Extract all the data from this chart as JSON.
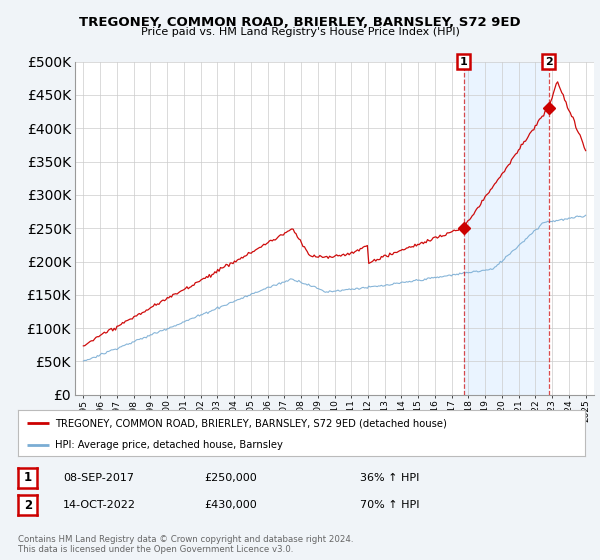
{
  "title": "TREGONEY, COMMON ROAD, BRIERLEY, BARNSLEY, S72 9ED",
  "subtitle": "Price paid vs. HM Land Registry's House Price Index (HPI)",
  "legend_line1": "TREGONEY, COMMON ROAD, BRIERLEY, BARNSLEY, S72 9ED (detached house)",
  "legend_line2": "HPI: Average price, detached house, Barnsley",
  "annotation1_date": "08-SEP-2017",
  "annotation1_price": "£250,000",
  "annotation1_hpi": "36% ↑ HPI",
  "annotation2_date": "14-OCT-2022",
  "annotation2_price": "£430,000",
  "annotation2_hpi": "70% ↑ HPI",
  "footnote1": "Contains HM Land Registry data © Crown copyright and database right 2024.",
  "footnote2": "This data is licensed under the Open Government Licence v3.0.",
  "red_color": "#cc0000",
  "blue_color": "#7aadd4",
  "shade_color": "#ddeeff",
  "background_color": "#f0f4f8",
  "plot_bg_color": "#ffffff",
  "ylim": [
    0,
    500000
  ],
  "yticks": [
    0,
    50000,
    100000,
    150000,
    200000,
    250000,
    300000,
    350000,
    400000,
    450000,
    500000
  ],
  "sale1_year": 2017.708,
  "sale1_price": 250000,
  "sale2_year": 2022.792,
  "sale2_price": 430000,
  "xmin": 1994.5,
  "xmax": 2025.5,
  "xtick_start": 1995,
  "xtick_end": 2025
}
